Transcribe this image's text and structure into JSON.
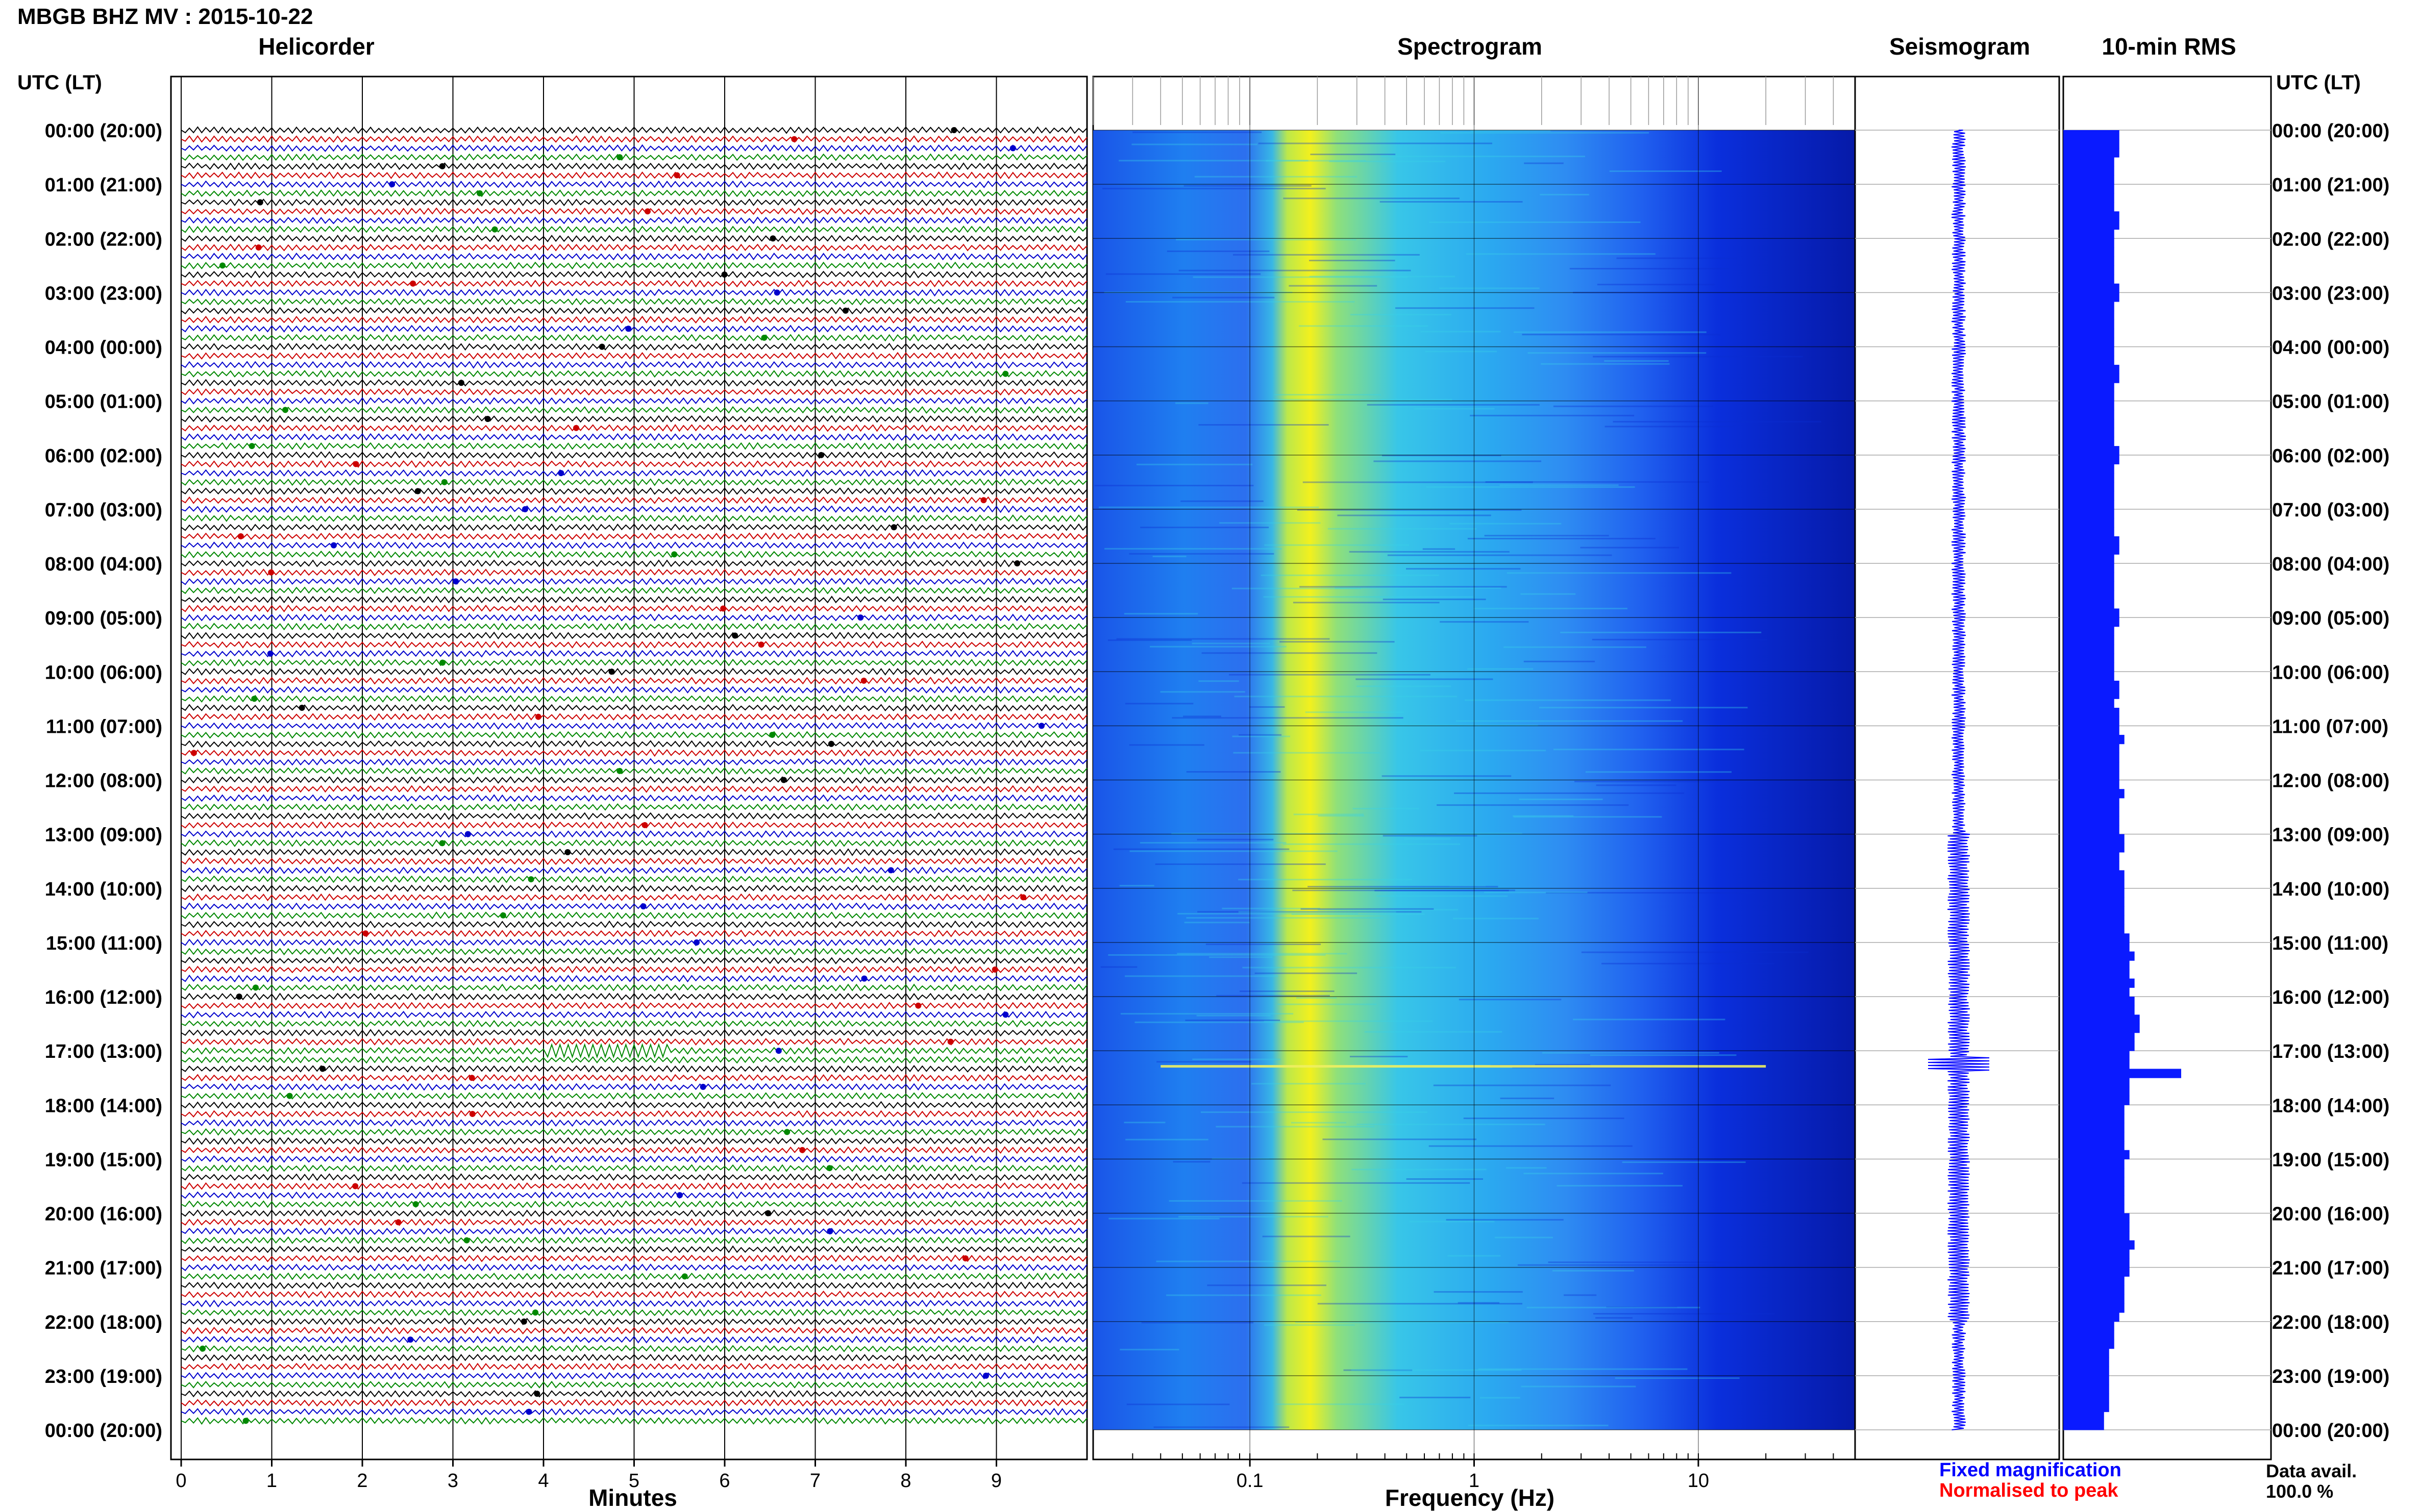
{
  "header": {
    "title": "MBGB BHZ MV : 2015-10-22",
    "utc_label": "UTC (LT)"
  },
  "panels": {
    "helicorder": "Helicorder",
    "spectrogram": "Spectrogram",
    "seismogram": "Seismogram",
    "rms": "10-min RMS"
  },
  "axes": {
    "minutes_label": "Minutes",
    "frequency_label": "Frequency (Hz)"
  },
  "legend": {
    "fixed": "Fixed magnification",
    "fixed_color": "#0000ff",
    "normalised": "Normalised to peak",
    "normalised_color": "#ff0000"
  },
  "availability": {
    "label": "Data avail.",
    "value": "100.0 %"
  },
  "chart_data": {
    "type": "heatmap",
    "title": "MBGB BHZ MV : 2015-10-22",
    "time_ticks": [
      "00:00 (20:00)",
      "01:00 (21:00)",
      "02:00 (22:00)",
      "03:00 (23:00)",
      "04:00 (00:00)",
      "05:00 (01:00)",
      "06:00 (02:00)",
      "07:00 (03:00)",
      "08:00 (04:00)",
      "09:00 (05:00)",
      "10:00 (06:00)",
      "11:00 (07:00)",
      "12:00 (08:00)",
      "13:00 (09:00)",
      "14:00 (10:00)",
      "15:00 (11:00)",
      "16:00 (12:00)",
      "17:00 (13:00)",
      "18:00 (14:00)",
      "19:00 (15:00)",
      "20:00 (16:00)",
      "21:00 (17:00)",
      "22:00 (18:00)",
      "23:00 (19:00)",
      "00:00 (20:00)"
    ],
    "helicorder": {
      "xlabel": "Minutes",
      "xlim": [
        0,
        10
      ],
      "x_ticks": [
        0,
        1,
        2,
        3,
        4,
        5,
        6,
        7,
        8,
        9
      ],
      "trace_colors": [
        "#000000",
        "#cc0000",
        "#0000cc",
        "#008800"
      ],
      "rows": 144,
      "event": {
        "time_utc": "17:00",
        "start_minute": 4.0,
        "end_minute": 5.4
      }
    },
    "spectrogram": {
      "xlabel": "Frequency (Hz)",
      "x_scale": "log",
      "xlim": [
        0.02,
        50
      ],
      "x_tick_labels": [
        "0.1",
        "1",
        "10"
      ],
      "x_tick_values": [
        0.1,
        1,
        10
      ],
      "peak_band_hz": [
        0.15,
        0.3
      ]
    },
    "rms": {
      "values_10min": [
        0.55,
        0.55,
        0.55,
        0.5,
        0.5,
        0.5,
        0.5,
        0.5,
        0.5,
        0.55,
        0.55,
        0.5,
        0.5,
        0.5,
        0.5,
        0.5,
        0.5,
        0.55,
        0.55,
        0.5,
        0.5,
        0.5,
        0.5,
        0.5,
        0.5,
        0.5,
        0.55,
        0.55,
        0.5,
        0.5,
        0.5,
        0.5,
        0.5,
        0.5,
        0.5,
        0.55,
        0.55,
        0.5,
        0.5,
        0.5,
        0.5,
        0.5,
        0.5,
        0.5,
        0.5,
        0.55,
        0.55,
        0.5,
        0.5,
        0.5,
        0.5,
        0.5,
        0.5,
        0.55,
        0.55,
        0.5,
        0.5,
        0.5,
        0.5,
        0.5,
        0.5,
        0.55,
        0.55,
        0.5,
        0.55,
        0.55,
        0.55,
        0.6,
        0.55,
        0.55,
        0.55,
        0.55,
        0.55,
        0.6,
        0.55,
        0.55,
        0.55,
        0.55,
        0.6,
        0.6,
        0.55,
        0.55,
        0.6,
        0.6,
        0.6,
        0.6,
        0.6,
        0.6,
        0.6,
        0.65,
        0.65,
        0.7,
        0.65,
        0.65,
        0.7,
        0.65,
        0.7,
        0.7,
        0.75,
        0.75,
        0.7,
        0.7,
        0.65,
        0.65,
        1.1,
        0.65,
        0.65,
        0.65,
        0.6,
        0.6,
        0.6,
        0.6,
        0.6,
        0.65,
        0.6,
        0.6,
        0.6,
        0.6,
        0.6,
        0.6,
        0.65,
        0.65,
        0.65,
        0.7,
        0.65,
        0.65,
        0.65,
        0.6,
        0.6,
        0.6,
        0.6,
        0.55,
        0.5,
        0.5,
        0.5,
        0.45,
        0.45,
        0.45,
        0.45,
        0.45,
        0.45,
        0.45,
        0.4,
        0.4
      ]
    }
  }
}
